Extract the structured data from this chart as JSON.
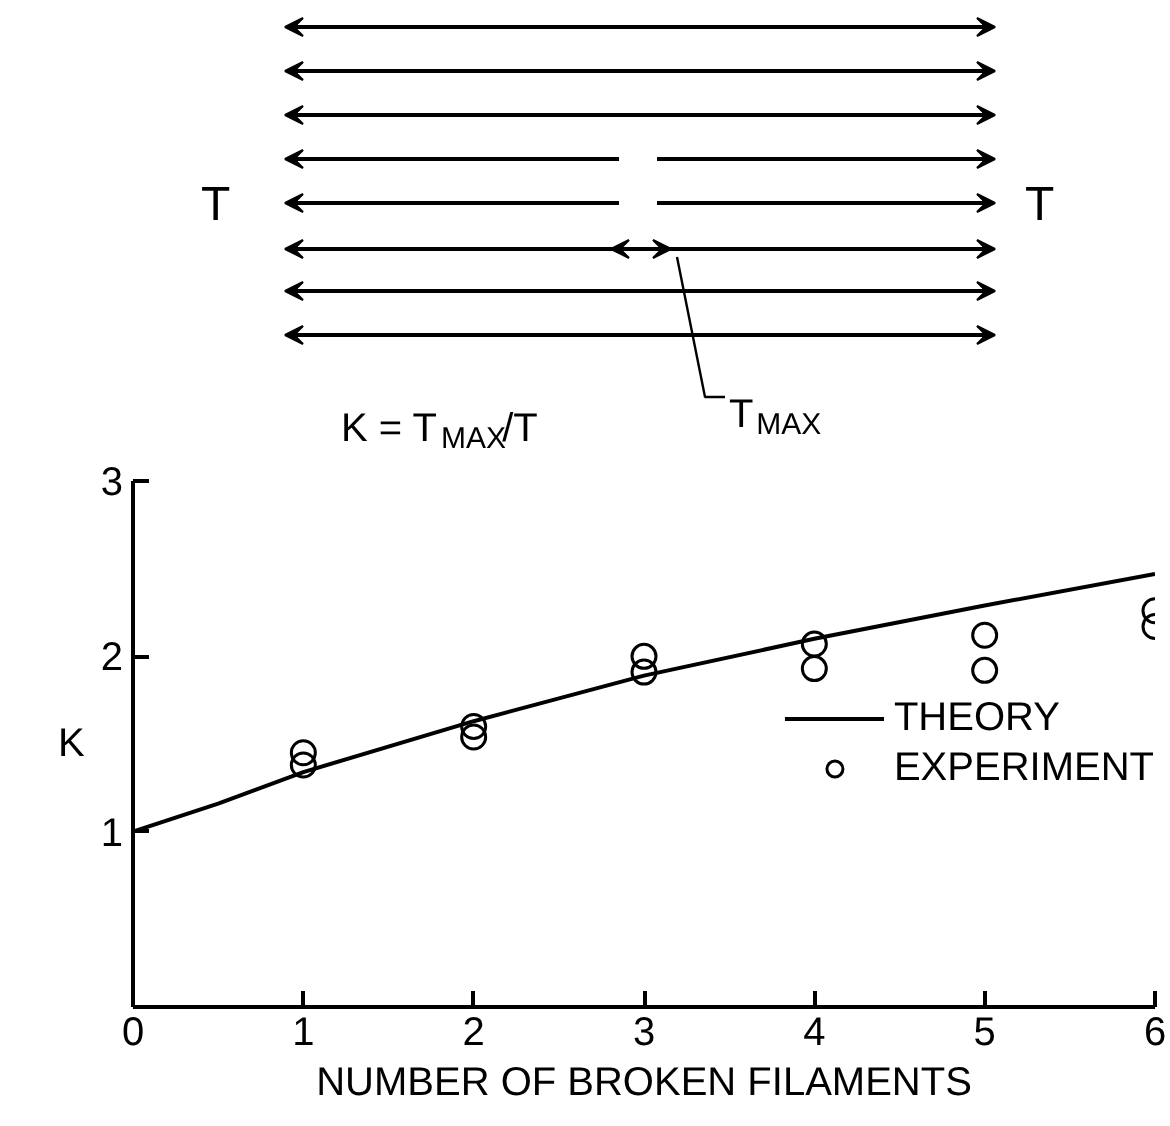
{
  "chart_data": {
    "type": "line",
    "xlabel": "NUMBER OF BROKEN FILAMENTS",
    "ylabel": "K",
    "xlim": [
      0,
      6
    ],
    "ylim": [
      0,
      3
    ],
    "xticks": [
      0,
      1,
      2,
      3,
      4,
      5,
      6
    ],
    "yticks": [
      {
        "value": 0,
        "label": null
      },
      1,
      2,
      3
    ],
    "grid": false,
    "legend": "right",
    "annotations": [
      "T",
      "T",
      "K = T$_{MAX}$/T",
      "T$_{MAX}$"
    ],
    "series": [
      {
        "name": "THEORY",
        "marker": "none",
        "line_style": "solid",
        "color": "#000000",
        "x": [
          0,
          0.5,
          1,
          2,
          3,
          4,
          5,
          6
        ],
        "values": [
          1.0,
          1.16,
          1.34,
          1.63,
          1.89,
          2.1,
          2.29,
          2.47
        ]
      },
      {
        "name": "EXPERIMENT",
        "type": "scatter",
        "marker": "circle",
        "color": "#000000",
        "x": [
          1,
          1,
          2,
          2,
          3,
          3,
          4,
          4,
          5,
          5,
          6,
          6
        ],
        "values": [
          1.45,
          1.38,
          1.6,
          1.54,
          2.0,
          1.91,
          2.07,
          1.93,
          2.12,
          1.92,
          2.26,
          2.17
        ]
      }
    ]
  }
}
